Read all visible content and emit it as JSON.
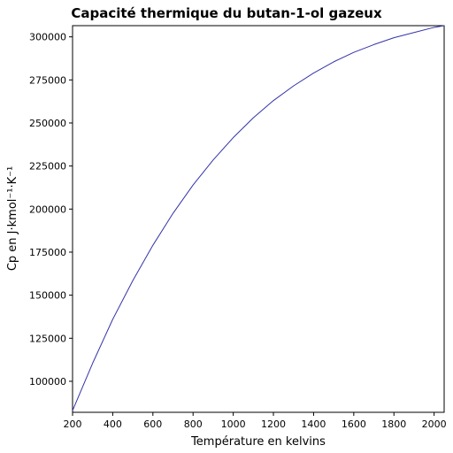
{
  "chart_data": {
    "type": "line",
    "title": "Capacité thermique du butan-1-ol gazeux",
    "xlabel": "Température en kelvins",
    "ylabel": "Cp en J·kmol⁻¹·K⁻¹",
    "xlim": [
      200,
      2050
    ],
    "ylim": [
      82000,
      306500
    ],
    "x_ticks": [
      200,
      400,
      600,
      800,
      1000,
      1200,
      1400,
      1600,
      1800,
      2000
    ],
    "y_ticks": [
      100000,
      125000,
      150000,
      175000,
      200000,
      225000,
      250000,
      275000,
      300000
    ],
    "grid": false,
    "series": [
      {
        "color": "#3333aa",
        "x": [
          200,
          300,
          400,
          500,
          600,
          700,
          800,
          900,
          1000,
          1100,
          1200,
          1300,
          1400,
          1500,
          1600,
          1700,
          1800,
          1900,
          2000,
          2050
        ],
        "y": [
          83000,
          110500,
          136000,
          158500,
          179000,
          197500,
          214000,
          228500,
          241500,
          253000,
          263000,
          271500,
          279000,
          285500,
          291000,
          295500,
          299500,
          302500,
          305500,
          306500
        ]
      }
    ]
  }
}
